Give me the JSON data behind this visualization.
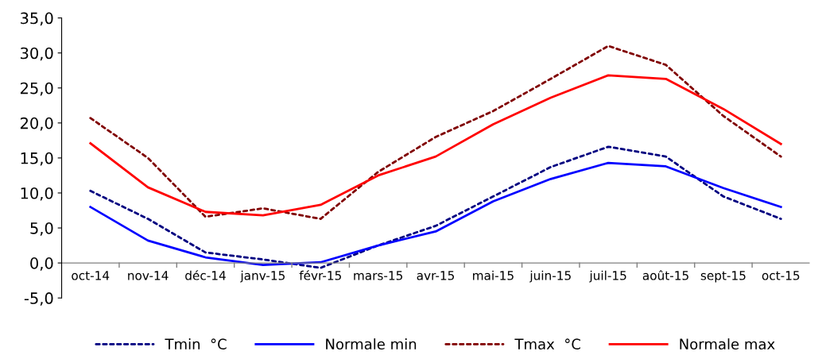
{
  "chart_data": {
    "type": "line",
    "categories": [
      "oct-14",
      "nov-14",
      "déc-14",
      "janv-15",
      "févr-15",
      "mars-15",
      "avr-15",
      "mai-15",
      "juin-15",
      "juil-15",
      "août-15",
      "sept-15",
      "oct-15"
    ],
    "series": [
      {
        "name": "Tmin  °C",
        "color": "#000080",
        "line_style": "dotted",
        "values": [
          10.3,
          6.3,
          1.5,
          0.5,
          -0.7,
          2.5,
          5.3,
          9.5,
          13.7,
          16.6,
          15.2,
          9.5,
          6.3
        ]
      },
      {
        "name": "Normale min",
        "color": "#0000ff",
        "line_style": "solid",
        "values": [
          8.0,
          3.2,
          0.8,
          -0.3,
          0.1,
          2.5,
          4.5,
          8.8,
          12.0,
          14.3,
          13.8,
          10.7,
          8.0
        ]
      },
      {
        "name": "Tmax  °C",
        "color": "#800000",
        "line_style": "dotted",
        "values": [
          20.7,
          15.0,
          6.6,
          7.8,
          6.3,
          13.0,
          18.0,
          21.7,
          26.3,
          31.0,
          28.3,
          21.0,
          15.2
        ]
      },
      {
        "name": "Normale max",
        "color": "#ff0000",
        "line_style": "solid",
        "values": [
          17.1,
          10.8,
          7.3,
          6.8,
          8.3,
          12.5,
          15.2,
          19.8,
          23.6,
          26.8,
          26.3,
          22.0,
          17.0
        ]
      }
    ],
    "ylim": [
      -5,
      35
    ],
    "yticks": [
      {
        "value": -5,
        "label": "-5,0"
      },
      {
        "value": 0,
        "label": "0,0"
      },
      {
        "value": 5,
        "label": "5,0"
      },
      {
        "value": 10,
        "label": "10,0"
      },
      {
        "value": 15,
        "label": "15,0"
      },
      {
        "value": 20,
        "label": "20,0"
      },
      {
        "value": 25,
        "label": "25,0"
      },
      {
        "value": 30,
        "label": "30,0"
      },
      {
        "value": 35,
        "label": "35,0"
      }
    ],
    "grid": false,
    "legend": "bottom",
    "marker": "none"
  }
}
